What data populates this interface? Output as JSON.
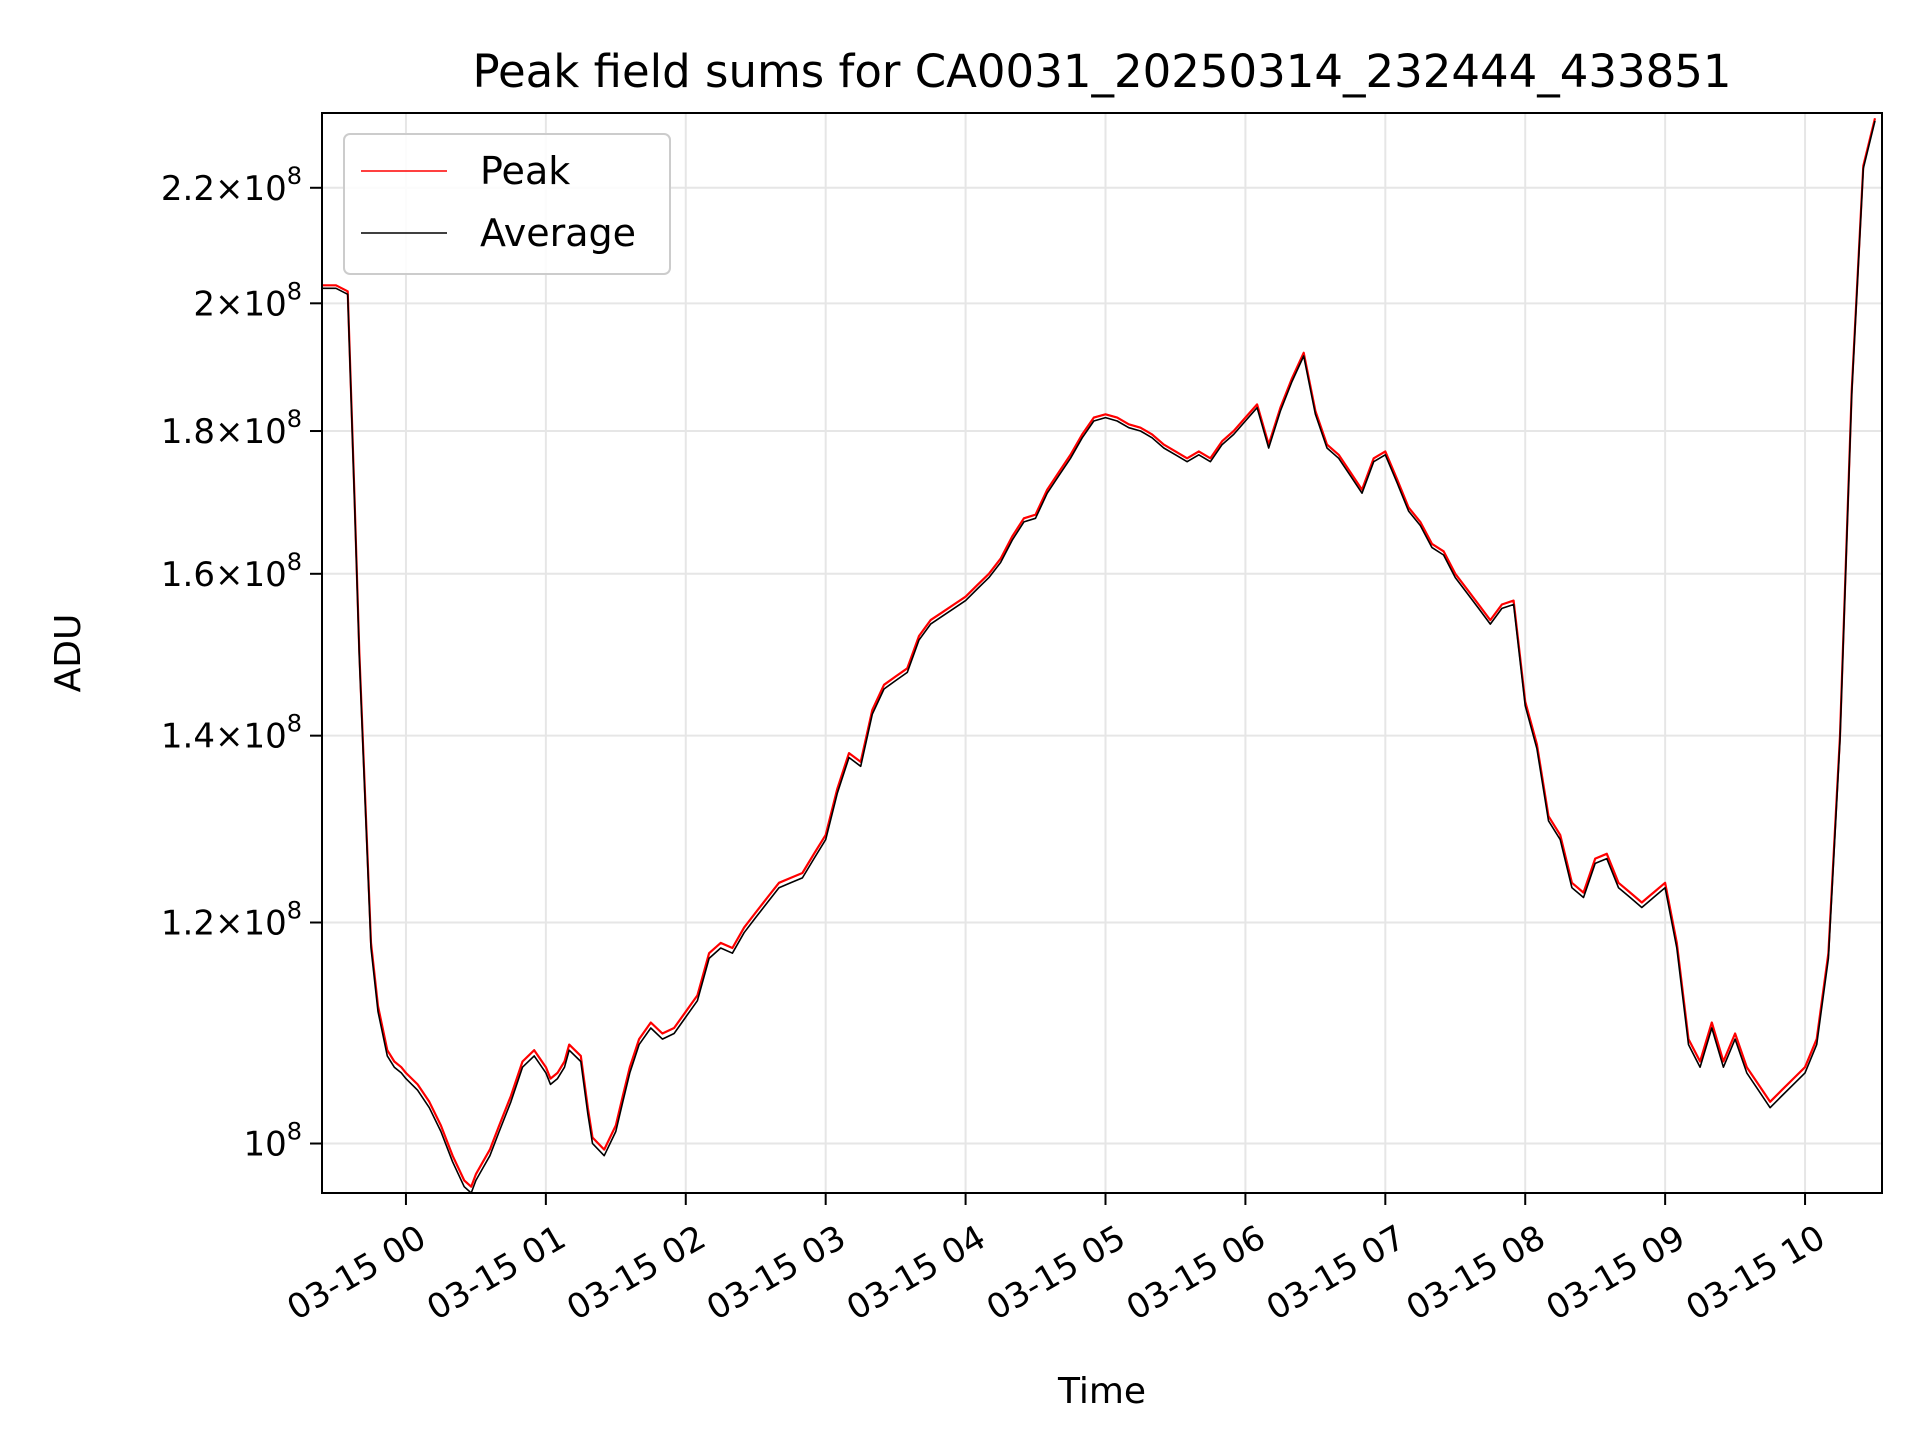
{
  "chart_data": {
    "type": "line",
    "title": "Peak field sums for CA0031_20250314_232444_433851",
    "xlabel": "Time",
    "ylabel": "ADU",
    "yscale": "log",
    "ylim": [
      96000000,
      234000000
    ],
    "xlim": [
      "03-14 23:24",
      "03-15 10:33"
    ],
    "grid": true,
    "legend_position": "top-left",
    "x_ticks": [
      "03-15 00",
      "03-15 01",
      "03-15 02",
      "03-15 03",
      "03-15 04",
      "03-15 05",
      "03-15 06",
      "03-15 07",
      "03-15 08",
      "03-15 09",
      "03-15 10"
    ],
    "y_ticks": [
      {
        "value": 100000000,
        "mantissa": "",
        "exp": "8"
      },
      {
        "value": 120000000,
        "mantissa": "1.2",
        "exp": "8"
      },
      {
        "value": 140000000,
        "mantissa": "1.4",
        "exp": "8"
      },
      {
        "value": 160000000,
        "mantissa": "1.6",
        "exp": "8"
      },
      {
        "value": 180000000,
        "mantissa": "1.8",
        "exp": "8"
      },
      {
        "value": 200000000,
        "mantissa": "2",
        "exp": "8"
      },
      {
        "value": 220000000,
        "mantissa": "2.2",
        "exp": "8"
      }
    ],
    "series": [
      {
        "name": "Peak",
        "color": "#ff0000"
      },
      {
        "name": "Average",
        "color": "#000000"
      }
    ],
    "x": [
      "03-14 23:24",
      "03-14 23:30",
      "03-14 23:35",
      "03-14 23:38",
      "03-14 23:40",
      "03-14 23:45",
      "03-14 23:48",
      "03-14 23:52",
      "03-14 23:55",
      "03-14 23:58",
      "03-15 00:00",
      "03-15 00:05",
      "03-15 00:10",
      "03-15 00:15",
      "03-15 00:20",
      "03-15 00:25",
      "03-15 00:28",
      "03-15 00:30",
      "03-15 00:33",
      "03-15 00:36",
      "03-15 00:40",
      "03-15 00:45",
      "03-15 00:50",
      "03-15 00:55",
      "03-15 01:00",
      "03-15 01:02",
      "03-15 01:05",
      "03-15 01:08",
      "03-15 01:10",
      "03-15 01:15",
      "03-15 01:18",
      "03-15 01:20",
      "03-15 01:25",
      "03-15 01:30",
      "03-15 01:33",
      "03-15 01:36",
      "03-15 01:40",
      "03-15 01:45",
      "03-15 01:50",
      "03-15 01:55",
      "03-15 02:00",
      "03-15 02:05",
      "03-15 02:10",
      "03-15 02:15",
      "03-15 02:20",
      "03-15 02:25",
      "03-15 02:30",
      "03-15 02:35",
      "03-15 02:40",
      "03-15 02:45",
      "03-15 02:50",
      "03-15 02:55",
      "03-15 03:00",
      "03-15 03:05",
      "03-15 03:10",
      "03-15 03:15",
      "03-15 03:20",
      "03-15 03:25",
      "03-15 03:30",
      "03-15 03:35",
      "03-15 03:40",
      "03-15 03:45",
      "03-15 03:50",
      "03-15 03:55",
      "03-15 04:00",
      "03-15 04:05",
      "03-15 04:10",
      "03-15 04:15",
      "03-15 04:20",
      "03-15 04:25",
      "03-15 04:30",
      "03-15 04:35",
      "03-15 04:40",
      "03-15 04:45",
      "03-15 04:50",
      "03-15 04:55",
      "03-15 05:00",
      "03-15 05:05",
      "03-15 05:10",
      "03-15 05:15",
      "03-15 05:20",
      "03-15 05:25",
      "03-15 05:30",
      "03-15 05:35",
      "03-15 05:40",
      "03-15 05:45",
      "03-15 05:50",
      "03-15 05:55",
      "03-15 06:00",
      "03-15 06:05",
      "03-15 06:10",
      "03-15 06:15",
      "03-15 06:20",
      "03-15 06:25",
      "03-15 06:30",
      "03-15 06:35",
      "03-15 06:40",
      "03-15 06:45",
      "03-15 06:50",
      "03-15 06:55",
      "03-15 07:00",
      "03-15 07:05",
      "03-15 07:10",
      "03-15 07:15",
      "03-15 07:20",
      "03-15 07:25",
      "03-15 07:30",
      "03-15 07:35",
      "03-15 07:40",
      "03-15 07:45",
      "03-15 07:50",
      "03-15 07:55",
      "03-15 08:00",
      "03-15 08:05",
      "03-15 08:10",
      "03-15 08:15",
      "03-15 08:20",
      "03-15 08:25",
      "03-15 08:30",
      "03-15 08:35",
      "03-15 08:40",
      "03-15 08:45",
      "03-15 08:50",
      "03-15 08:55",
      "03-15 09:00",
      "03-15 09:05",
      "03-15 09:10",
      "03-15 09:15",
      "03-15 09:20",
      "03-15 09:25",
      "03-15 09:30",
      "03-15 09:35",
      "03-15 09:40",
      "03-15 09:45",
      "03-15 09:50",
      "03-15 09:55",
      "03-15 10:00",
      "03-15 10:05",
      "03-15 10:10",
      "03-15 10:15",
      "03-15 10:20",
      "03-15 10:25",
      "03-15 10:30",
      "03-15 10:33"
    ],
    "peak_values": [
      203000000,
      203000000,
      202000000,
      170000000,
      150000000,
      118000000,
      112000000,
      108000000,
      107000000,
      106500000,
      106000000,
      105000000,
      103500000,
      101500000,
      99000000,
      97000000,
      96500000,
      97500000,
      98500000,
      99500000,
      101500000,
      104000000,
      107000000,
      108000000,
      106500000,
      105500000,
      106000000,
      107000000,
      108500000,
      107500000,
      103000000,
      100500000,
      99500000,
      101500000,
      104000000,
      106500000,
      109000000,
      110500000,
      109500000,
      110000000,
      111500000,
      113000000,
      117000000,
      118000000,
      117500000,
      119500000,
      121000000,
      122500000,
      124000000,
      124500000,
      125000000,
      127000000,
      129000000,
      134000000,
      138000000,
      137000000,
      143000000,
      146000000,
      147000000,
      148000000,
      152000000,
      154000000,
      155000000,
      156000000,
      157000000,
      158500000,
      160000000,
      162000000,
      165000000,
      167500000,
      168000000,
      171500000,
      174000000,
      176500000,
      179500000,
      182000000,
      182500000,
      182000000,
      181000000,
      180500000,
      179500000,
      178000000,
      177000000,
      176000000,
      177000000,
      176000000,
      178500000,
      180000000,
      182000000,
      184000000,
      178000000,
      183500000,
      188000000,
      192000000,
      183000000,
      178000000,
      176500000,
      174000000,
      171500000,
      176000000,
      177000000,
      173000000,
      169000000,
      167000000,
      164000000,
      163000000,
      160000000,
      158000000,
      156000000,
      154000000,
      156000000,
      156500000,
      144000000,
      139000000,
      131000000,
      129000000,
      124000000,
      123000000,
      126500000,
      127000000,
      124000000,
      123000000,
      122000000,
      123000000,
      124000000,
      118000000,
      109000000,
      107000000,
      110500000,
      107000000,
      109500000,
      106500000,
      105000000,
      103500000,
      104500000,
      105500000,
      106500000,
      109000000,
      117000000,
      140000000,
      186000000,
      224000000,
      233000000
    ],
    "average_values": [
      202500000,
      202500000,
      201500000,
      169500000,
      149500000,
      117500000,
      111500000,
      107500000,
      106500000,
      106000000,
      105500000,
      104500000,
      103000000,
      101000000,
      98500000,
      96500000,
      96000000,
      97000000,
      98000000,
      99000000,
      101000000,
      103500000,
      106500000,
      107500000,
      106000000,
      105000000,
      105500000,
      106500000,
      108000000,
      107000000,
      102500000,
      100000000,
      99000000,
      101000000,
      103500000,
      106000000,
      108500000,
      110000000,
      109000000,
      109500000,
      111000000,
      112500000,
      116500000,
      117500000,
      117000000,
      119000000,
      120500000,
      122000000,
      123500000,
      124000000,
      124500000,
      126500000,
      128500000,
      133500000,
      137500000,
      136500000,
      142500000,
      145500000,
      146500000,
      147500000,
      151500000,
      153500000,
      154500000,
      155500000,
      156500000,
      158000000,
      159500000,
      161500000,
      164500000,
      167000000,
      167500000,
      171000000,
      173500000,
      176000000,
      179000000,
      181500000,
      182000000,
      181500000,
      180500000,
      180000000,
      179000000,
      177500000,
      176500000,
      175500000,
      176500000,
      175500000,
      178000000,
      179500000,
      181500000,
      183500000,
      177500000,
      183000000,
      187500000,
      191500000,
      182500000,
      177500000,
      176000000,
      173500000,
      171000000,
      175500000,
      176500000,
      172500000,
      168500000,
      166500000,
      163500000,
      162500000,
      159500000,
      157500000,
      155500000,
      153500000,
      155500000,
      156000000,
      143500000,
      138500000,
      130500000,
      128500000,
      123500000,
      122500000,
      126000000,
      126500000,
      123500000,
      122500000,
      121500000,
      122500000,
      123500000,
      117500000,
      108500000,
      106500000,
      110000000,
      106500000,
      109000000,
      106000000,
      104500000,
      103000000,
      104000000,
      105000000,
      106000000,
      108500000,
      116500000,
      139500000,
      185500000,
      223500000,
      232500000
    ]
  }
}
